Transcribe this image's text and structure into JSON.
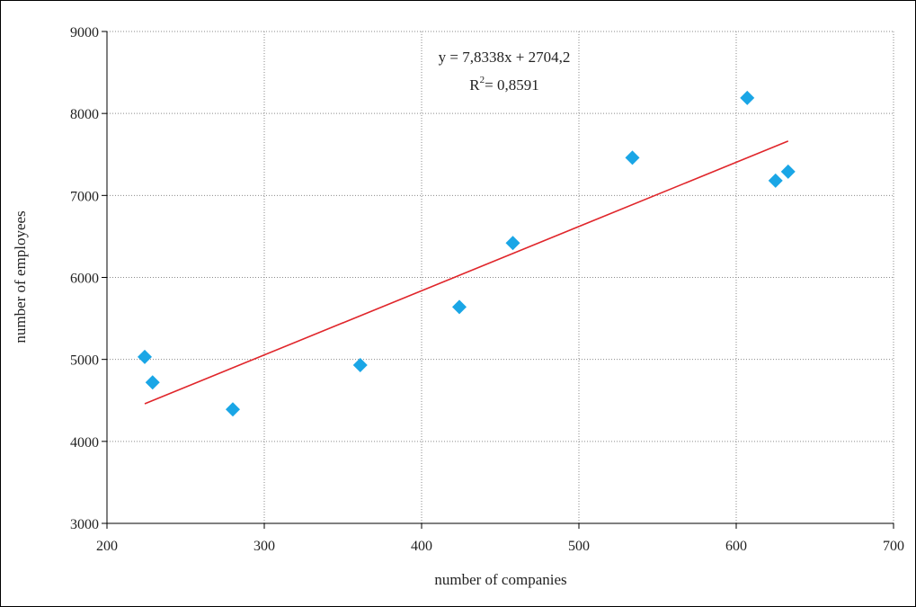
{
  "chart_data": {
    "type": "scatter",
    "xlabel": "number of companies",
    "ylabel": "number of employees",
    "xlim": [
      200,
      700
    ],
    "ylim": [
      3000,
      9000
    ],
    "x_ticks": [
      "200",
      "300",
      "400",
      "500",
      "600",
      "700"
    ],
    "y_ticks": [
      "3000",
      "4000",
      "5000",
      "6000",
      "7000",
      "8000",
      "9000"
    ],
    "grid": true,
    "marker": "diamond",
    "marker_color": "#1aa6e6",
    "trendline_color": "#e0262b",
    "series": [
      {
        "points": [
          {
            "x": 224,
            "y": 5030
          },
          {
            "x": 229,
            "y": 4720
          },
          {
            "x": 280,
            "y": 4390
          },
          {
            "x": 361,
            "y": 4930
          },
          {
            "x": 424,
            "y": 5640
          },
          {
            "x": 458,
            "y": 6420
          },
          {
            "x": 534,
            "y": 7460
          },
          {
            "x": 607,
            "y": 8190
          },
          {
            "x": 625,
            "y": 7180
          },
          {
            "x": 633,
            "y": 7290
          }
        ]
      }
    ],
    "trendline": {
      "slope": 7.8338,
      "intercept": 2704.2,
      "x_range": [
        224,
        633
      ],
      "equation_text": "y = 7,8338x + 2704,2",
      "r2_prefix": "R",
      "r2_exponent": "2",
      "r2_value": "= 0,8591"
    }
  }
}
